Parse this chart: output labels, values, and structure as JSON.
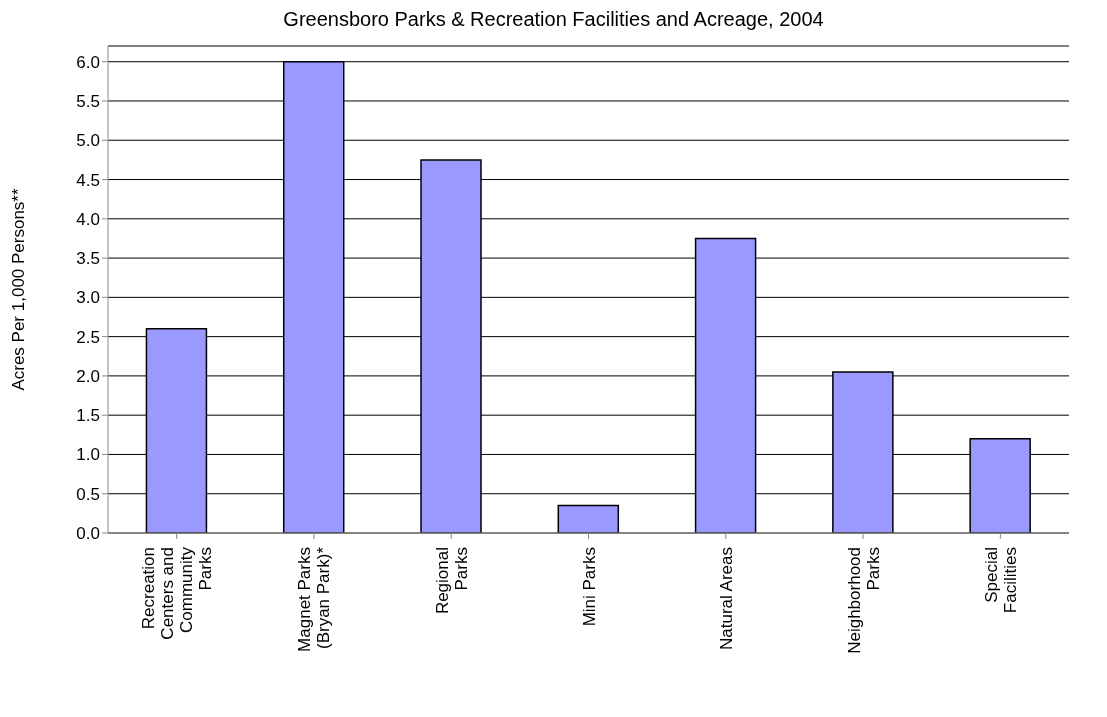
{
  "chart_data": {
    "type": "bar",
    "title": "Greensboro Parks & Recreation Facilities and Acreage, 2004",
    "ylabel": "Acres Per 1,000 Persons**",
    "categories": [
      "Recreation Centers and Community Parks",
      "Magnet Parks (Bryan Park)*",
      "Regional Parks",
      "Mini Parks",
      "Natural Areas",
      "Neighborhood Parks",
      "Special Facilities"
    ],
    "values": [
      2.6,
      6.0,
      4.75,
      0.35,
      3.75,
      2.05,
      1.2
    ],
    "color": "#9999ff",
    "ylim": [
      0,
      6.2
    ],
    "yticks": [
      {
        "value": 0,
        "label": "0.0"
      },
      {
        "value": 0.5,
        "label": "0.5"
      },
      {
        "value": 1,
        "label": "1.0"
      },
      {
        "value": 1.5,
        "label": "1.5"
      },
      {
        "value": 2,
        "label": "2.0"
      },
      {
        "value": 2.5,
        "label": "2.5"
      },
      {
        "value": 3,
        "label": "3.0"
      },
      {
        "value": 3.5,
        "label": "3.5"
      },
      {
        "value": 4,
        "label": "4.0"
      },
      {
        "value": 4.5,
        "label": "4.5"
      },
      {
        "value": 5,
        "label": "5.0"
      },
      {
        "value": 5.5,
        "label": "5.5"
      },
      {
        "value": 6,
        "label": "6.0"
      }
    ],
    "grid": "y",
    "legend": false
  }
}
